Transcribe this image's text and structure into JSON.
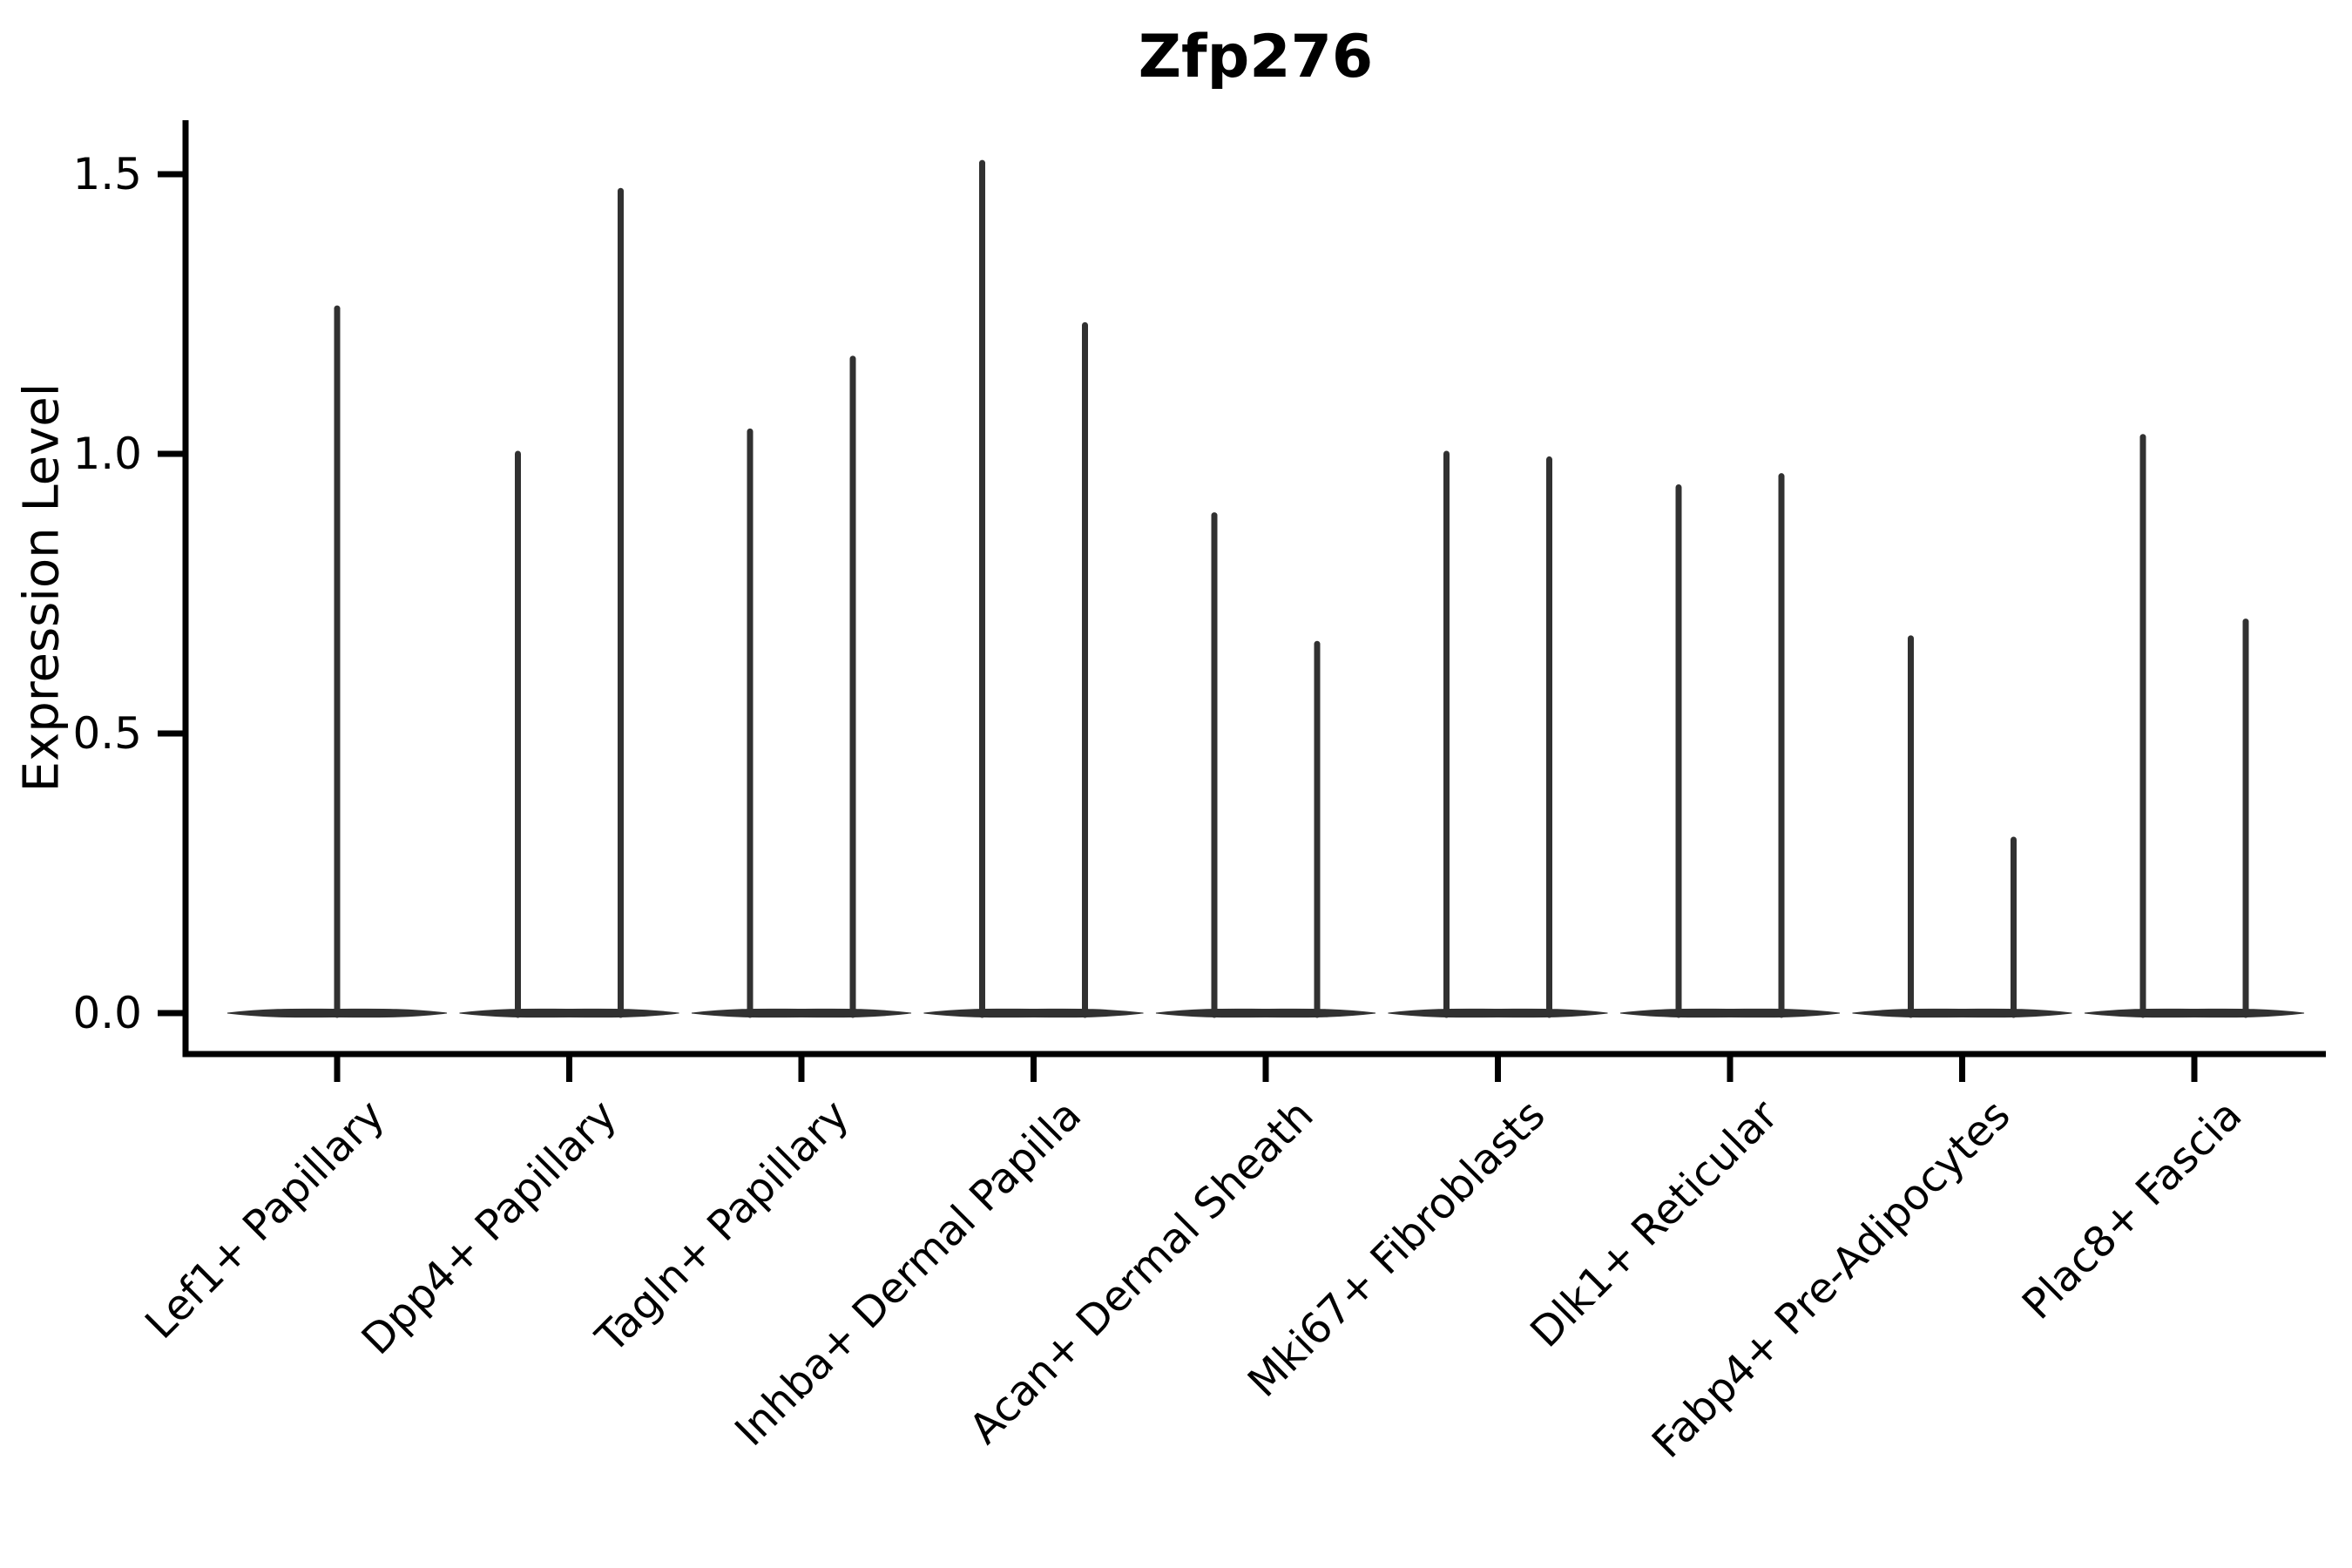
{
  "title": "Zfp276",
  "chart_data": {
    "type": "violin",
    "title": "Zfp276",
    "xlabel": "",
    "ylabel": "Expression Level",
    "ylim": [
      -0.07,
      1.6
    ],
    "yticks": [
      0.0,
      0.5,
      1.0,
      1.5
    ],
    "ytick_labels": [
      "0.0",
      "0.5",
      "1.0",
      "1.5"
    ],
    "grid": false,
    "legend": false,
    "baseline_value": 0.0,
    "categories": [
      "Lef1+ Papillary",
      "Dpp4+ Papillary",
      "Tagln+ Papillary",
      "Inhba+ Dermal Papilla",
      "Acan+ Dermal Sheath",
      "Mki67+ Fibroblasts",
      "Dlk1+ Reticular",
      "Fabp4+ Pre-Adipocytes",
      "Plac8+ Fascia"
    ],
    "violins": [
      {
        "category": "Lef1+ Papillary",
        "spikes": [
          {
            "pos": "center",
            "max": 1.26
          }
        ]
      },
      {
        "category": "Dpp4+ Papillary",
        "spikes": [
          {
            "pos": "left",
            "max": 1.0
          },
          {
            "pos": "right",
            "max": 1.47
          }
        ]
      },
      {
        "category": "Tagln+ Papillary",
        "spikes": [
          {
            "pos": "left",
            "max": 1.04
          },
          {
            "pos": "right",
            "max": 1.17
          }
        ]
      },
      {
        "category": "Inhba+ Dermal Papilla",
        "spikes": [
          {
            "pos": "left",
            "max": 1.52
          },
          {
            "pos": "right",
            "max": 1.23
          }
        ]
      },
      {
        "category": "Acan+ Dermal Sheath",
        "spikes": [
          {
            "pos": "left",
            "max": 0.89
          },
          {
            "pos": "right",
            "max": 0.66
          }
        ]
      },
      {
        "category": "Mki67+ Fibroblasts",
        "spikes": [
          {
            "pos": "left",
            "max": 1.0
          },
          {
            "pos": "right",
            "max": 0.99
          }
        ]
      },
      {
        "category": "Dlk1+ Reticular",
        "spikes": [
          {
            "pos": "left",
            "max": 0.94
          },
          {
            "pos": "right",
            "max": 0.96
          }
        ]
      },
      {
        "category": "Fabp4+ Pre-Adipocytes",
        "spikes": [
          {
            "pos": "left",
            "max": 0.67
          },
          {
            "pos": "right",
            "max": 0.31
          }
        ]
      },
      {
        "category": "Plac8+ Fascia",
        "spikes": [
          {
            "pos": "left",
            "max": 1.03
          },
          {
            "pos": "right",
            "max": 0.7
          }
        ]
      }
    ]
  },
  "style": {
    "violin_color": "#313131",
    "axis_color": "#000000",
    "text_color": "#000000",
    "background": "#ffffff"
  }
}
